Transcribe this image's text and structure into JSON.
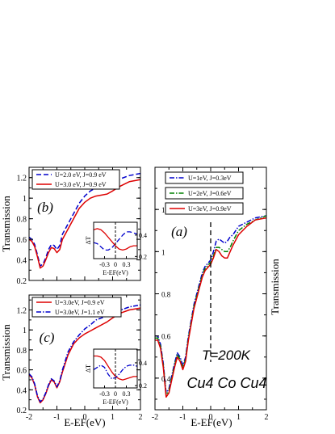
{
  "chart_data": [
    {
      "id": "b",
      "type": "line",
      "panel_label": "(b)",
      "ylabel": "Transmission",
      "xlim": [
        -2,
        2
      ],
      "ylim": [
        0.2,
        1.3
      ],
      "xticks": [
        "-2",
        "-1",
        "0",
        "1",
        "2"
      ],
      "yticks": [
        "0.2",
        "0.4",
        "0.6",
        "0.8",
        "1",
        "1.2"
      ],
      "legend": "top-left",
      "series": [
        {
          "name": "U=2.0 eV, J=0.9 eV",
          "color": "#0000cc",
          "dash": "dashed",
          "x": [
            -2,
            -1.9,
            -1.8,
            -1.7,
            -1.6,
            -1.5,
            -1.4,
            -1.3,
            -1.2,
            -1.1,
            -1.0,
            -0.9,
            -0.8,
            -0.6,
            -0.4,
            -0.2,
            0,
            0.2,
            0.4,
            0.6,
            0.8,
            1.0,
            1.3,
            1.6,
            2.0
          ],
          "y": [
            0.62,
            0.6,
            0.55,
            0.45,
            0.34,
            0.36,
            0.42,
            0.5,
            0.55,
            0.54,
            0.5,
            0.54,
            0.65,
            0.75,
            0.85,
            0.95,
            1.02,
            1.07,
            1.1,
            1.11,
            1.12,
            1.15,
            1.19,
            1.22,
            1.24
          ]
        },
        {
          "name": "U=3.0 eV, J=0.9 eV",
          "color": "#dd0000",
          "dash": "solid",
          "x": [
            -2,
            -1.9,
            -1.8,
            -1.7,
            -1.6,
            -1.5,
            -1.4,
            -1.3,
            -1.2,
            -1.1,
            -1.0,
            -0.9,
            -0.8,
            -0.6,
            -0.4,
            -0.2,
            0,
            0.2,
            0.4,
            0.6,
            0.8,
            1.0,
            1.3,
            1.6,
            2.0
          ],
          "y": [
            0.6,
            0.58,
            0.53,
            0.43,
            0.32,
            0.34,
            0.4,
            0.47,
            0.52,
            0.51,
            0.47,
            0.5,
            0.6,
            0.7,
            0.8,
            0.9,
            0.96,
            1.0,
            1.02,
            1.03,
            1.04,
            1.07,
            1.12,
            1.16,
            1.18
          ]
        }
      ],
      "inset": {
        "xlabel": "E-EF(eV)",
        "ylabel": "ΔT",
        "xlim": [
          -0.6,
          0.6
        ],
        "ylim": [
          0.18,
          0.52
        ],
        "xticks": [
          "-0.3",
          "0",
          "0.3"
        ],
        "yticks": [
          "0.2",
          "0.4"
        ],
        "series": [
          {
            "color": "#0000cc",
            "dash": "dashed",
            "x": [
              -0.6,
              -0.5,
              -0.4,
              -0.3,
              -0.2,
              -0.1,
              0,
              0.1,
              0.2,
              0.3,
              0.4,
              0.5,
              0.6
            ],
            "y": [
              0.33,
              0.32,
              0.29,
              0.26,
              0.26,
              0.28,
              0.32,
              0.36,
              0.4,
              0.43,
              0.43,
              0.42,
              0.41
            ]
          },
          {
            "color": "#dd0000",
            "dash": "solid",
            "x": [
              -0.6,
              -0.5,
              -0.4,
              -0.3,
              -0.2,
              -0.1,
              0,
              0.1,
              0.2,
              0.3,
              0.4,
              0.5,
              0.6
            ],
            "y": [
              0.45,
              0.46,
              0.45,
              0.42,
              0.38,
              0.34,
              0.3,
              0.27,
              0.26,
              0.27,
              0.29,
              0.3,
              0.3
            ]
          }
        ]
      }
    },
    {
      "id": "c",
      "type": "line",
      "panel_label": "(c)",
      "ylabel": "Transmission",
      "xlabel": "E-EF(eV)",
      "xlim": [
        -2,
        2
      ],
      "ylim": [
        0.2,
        1.35
      ],
      "xticks": [
        "-2",
        "-1",
        "0",
        "1",
        "2"
      ],
      "yticks": [
        "0.2",
        "0.4",
        "0.6",
        "0.8",
        "1",
        "1.2"
      ],
      "legend": "top-left",
      "series": [
        {
          "name": "U=3.0eV, J=0.9 eV",
          "color": "#dd0000",
          "dash": "solid",
          "x": [
            -2,
            -1.9,
            -1.8,
            -1.7,
            -1.6,
            -1.5,
            -1.4,
            -1.3,
            -1.2,
            -1.1,
            -1.0,
            -0.9,
            -0.8,
            -0.6,
            -0.4,
            -0.2,
            0,
            0.2,
            0.4,
            0.6,
            0.8,
            1.0,
            1.3,
            1.6,
            2.0
          ],
          "y": [
            0.55,
            0.52,
            0.45,
            0.33,
            0.27,
            0.3,
            0.36,
            0.44,
            0.5,
            0.48,
            0.42,
            0.48,
            0.58,
            0.75,
            0.86,
            0.92,
            0.96,
            0.99,
            1.02,
            1.05,
            1.08,
            1.12,
            1.17,
            1.2,
            1.22
          ]
        },
        {
          "name": "U=3.0eV, J=1.1 eV",
          "color": "#0000cc",
          "dash": "dashdot",
          "x": [
            -2,
            -1.9,
            -1.8,
            -1.7,
            -1.6,
            -1.5,
            -1.4,
            -1.3,
            -1.2,
            -1.1,
            -1.0,
            -0.9,
            -0.8,
            -0.6,
            -0.4,
            -0.2,
            0,
            0.2,
            0.4,
            0.6,
            0.8,
            1.0,
            1.3,
            1.6,
            2.0
          ],
          "y": [
            0.56,
            0.53,
            0.46,
            0.34,
            0.28,
            0.31,
            0.37,
            0.45,
            0.51,
            0.49,
            0.43,
            0.49,
            0.6,
            0.78,
            0.88,
            0.95,
            1.01,
            1.05,
            1.1,
            1.12,
            1.14,
            1.17,
            1.2,
            1.23,
            1.25
          ]
        }
      ],
      "inset": {
        "xlabel": "E-EF(eV)",
        "ylabel": "ΔT",
        "xlim": [
          -0.6,
          0.6
        ],
        "ylim": [
          0.18,
          0.52
        ],
        "xticks": [
          "-0.3",
          "0",
          "0.3"
        ],
        "yticks": [
          "0.2",
          "0.4"
        ],
        "series": [
          {
            "color": "#dd0000",
            "dash": "solid",
            "x": [
              -0.6,
              -0.5,
              -0.4,
              -0.3,
              -0.2,
              -0.1,
              0,
              0.1,
              0.2,
              0.3,
              0.4,
              0.5,
              0.6
            ],
            "y": [
              0.46,
              0.46,
              0.45,
              0.42,
              0.37,
              0.32,
              0.28,
              0.26,
              0.25,
              0.26,
              0.27,
              0.28,
              0.28
            ]
          },
          {
            "color": "#0000cc",
            "dash": "dashdot",
            "x": [
              -0.6,
              -0.5,
              -0.4,
              -0.3,
              -0.2,
              -0.1,
              0,
              0.1,
              0.2,
              0.3,
              0.4,
              0.5,
              0.6
            ],
            "y": [
              0.34,
              0.36,
              0.38,
              0.36,
              0.3,
              0.26,
              0.27,
              0.3,
              0.34,
              0.37,
              0.38,
              0.38,
              0.37
            ]
          }
        ]
      }
    },
    {
      "id": "a",
      "type": "line",
      "panel_label": "(a)",
      "ylabel": "Transmission",
      "xlabel": "E-EF(eV)",
      "xlim": [
        -2,
        2
      ],
      "ylim": [
        0.25,
        1.4
      ],
      "xticks": [
        "-2",
        "-1",
        "0",
        "1",
        "2"
      ],
      "yticks": [
        "0.4",
        "0.6",
        "0.8",
        "1",
        "1.2"
      ],
      "annotations": [
        "T=200K",
        "Cu4 Co Cu4"
      ],
      "series": [
        {
          "name": "U=1eV, J=0.3eV",
          "color": "#0000cc",
          "dash": "dashdot",
          "x": [
            -2,
            -1.9,
            -1.8,
            -1.7,
            -1.6,
            -1.5,
            -1.4,
            -1.3,
            -1.2,
            -1.1,
            -1.0,
            -0.9,
            -0.8,
            -0.6,
            -0.4,
            -0.3,
            -0.2,
            0,
            0.1,
            0.2,
            0.3,
            0.4,
            0.5,
            0.6,
            0.7,
            0.8,
            1.0,
            1.3,
            1.6,
            2.0
          ],
          "y": [
            0.6,
            0.6,
            0.56,
            0.47,
            0.33,
            0.35,
            0.41,
            0.47,
            0.52,
            0.5,
            0.46,
            0.5,
            0.6,
            0.75,
            0.85,
            0.9,
            0.93,
            0.96,
            1.0,
            1.05,
            1.06,
            1.05,
            1.04,
            1.05,
            1.07,
            1.08,
            1.12,
            1.14,
            1.16,
            1.17
          ]
        },
        {
          "name": "U=2eV, J=0.6eV",
          "color": "#008000",
          "dash": "dashdot",
          "x": [
            -2,
            -1.9,
            -1.8,
            -1.7,
            -1.6,
            -1.5,
            -1.4,
            -1.3,
            -1.2,
            -1.1,
            -1.0,
            -0.9,
            -0.8,
            -0.6,
            -0.4,
            -0.3,
            -0.2,
            0,
            0.1,
            0.2,
            0.3,
            0.4,
            0.5,
            0.6,
            0.7,
            0.8,
            1.0,
            1.3,
            1.6,
            2.0
          ],
          "y": [
            0.59,
            0.59,
            0.55,
            0.46,
            0.32,
            0.34,
            0.4,
            0.46,
            0.51,
            0.49,
            0.45,
            0.49,
            0.59,
            0.74,
            0.84,
            0.89,
            0.92,
            0.95,
            0.98,
            1.02,
            1.02,
            1.01,
            1.0,
            1.0,
            1.02,
            1.05,
            1.1,
            1.13,
            1.15,
            1.17
          ]
        },
        {
          "name": "U=3eV, J=0.9eV",
          "color": "#dd0000",
          "dash": "solid",
          "x": [
            -2,
            -1.9,
            -1.8,
            -1.7,
            -1.6,
            -1.5,
            -1.4,
            -1.3,
            -1.2,
            -1.1,
            -1.0,
            -0.9,
            -0.8,
            -0.6,
            -0.4,
            -0.3,
            -0.2,
            0,
            0.1,
            0.2,
            0.3,
            0.4,
            0.5,
            0.6,
            0.7,
            0.8,
            1.0,
            1.3,
            1.6,
            2.0
          ],
          "y": [
            0.58,
            0.58,
            0.54,
            0.45,
            0.31,
            0.33,
            0.39,
            0.45,
            0.5,
            0.48,
            0.44,
            0.48,
            0.58,
            0.73,
            0.83,
            0.88,
            0.91,
            0.94,
            0.97,
            1.01,
            1.0,
            0.98,
            0.97,
            0.97,
            1.0,
            1.03,
            1.08,
            1.12,
            1.15,
            1.16
          ]
        }
      ]
    }
  ]
}
